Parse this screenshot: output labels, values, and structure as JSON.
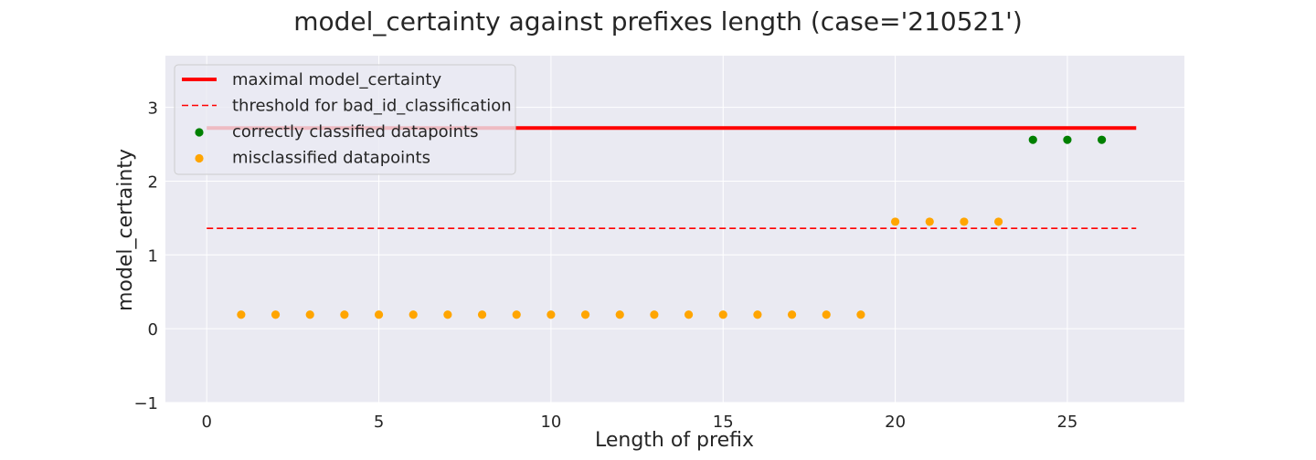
{
  "chart_data": {
    "type": "scatter",
    "title": "model_certainty against prefixes length (case='210521')",
    "xlabel": "Length of prefix",
    "ylabel": "model_certainty",
    "xlim": [
      -1.2,
      28.4
    ],
    "ylim": [
      -1,
      3.7
    ],
    "xticks": [
      0,
      5,
      10,
      15,
      20,
      25
    ],
    "yticks": [
      -1,
      0,
      1,
      2,
      3
    ],
    "ytick_labels": [
      "−1",
      "0",
      "1",
      "2",
      "3"
    ],
    "grid": true,
    "background": "#eaeaf2",
    "legend_position": "top-left",
    "lines": [
      {
        "name": "maximal model_certainty",
        "x": [
          0,
          27
        ],
        "y": [
          2.72,
          2.72
        ],
        "color": "#ff0000",
        "style": "solid"
      },
      {
        "name": "threshold for bad_id_classification",
        "x": [
          0,
          27
        ],
        "y": [
          1.36,
          1.36
        ],
        "color": "#ff0000",
        "style": "dashed"
      }
    ],
    "series": [
      {
        "name": "correctly classified datapoints",
        "color": "#008000",
        "x": [
          24,
          25,
          26
        ],
        "y": [
          2.56,
          2.56,
          2.56
        ]
      },
      {
        "name": "misclassified datapoints",
        "color": "#ffa500",
        "x": [
          1,
          2,
          3,
          4,
          5,
          6,
          7,
          8,
          9,
          10,
          11,
          12,
          13,
          14,
          15,
          16,
          17,
          18,
          19,
          20,
          21,
          22,
          23
        ],
        "y": [
          0.19,
          0.19,
          0.19,
          0.19,
          0.19,
          0.19,
          0.19,
          0.19,
          0.19,
          0.19,
          0.19,
          0.19,
          0.19,
          0.19,
          0.19,
          0.19,
          0.19,
          0.19,
          0.19,
          1.45,
          1.45,
          1.45,
          1.45
        ]
      }
    ]
  }
}
